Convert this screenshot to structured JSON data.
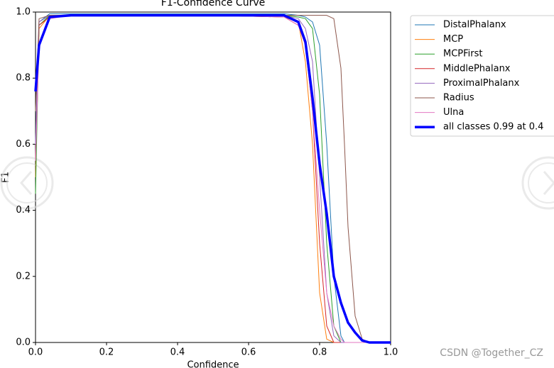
{
  "chart_data": {
    "type": "line",
    "title": "F1-Confidence Curve",
    "xlabel": "Confidence",
    "ylabel": "F1",
    "x": [
      0,
      0.01,
      0.04,
      0.1,
      0.5,
      0.7,
      0.74,
      0.76,
      0.78,
      0.8,
      0.82,
      0.84,
      0.86,
      0.87,
      0.88,
      0.9,
      0.92,
      0.94,
      1.0
    ],
    "series": [
      {
        "name": "DistalPhalanx",
        "color": "#1f77b4",
        "width": 1,
        "values": [
          0.6,
          0.97,
          0.995,
          0.995,
          0.995,
          0.995,
          0.99,
          0.985,
          0.97,
          0.9,
          0.6,
          0.2,
          0.02,
          0,
          0,
          0,
          0,
          0,
          0
        ]
      },
      {
        "name": "MCP",
        "color": "#ff7f0e",
        "width": 1,
        "values": [
          0.5,
          0.95,
          0.99,
          0.99,
          0.99,
          0.985,
          0.97,
          0.85,
          0.6,
          0.15,
          0.01,
          0,
          0,
          0,
          0,
          0,
          0,
          0,
          0
        ]
      },
      {
        "name": "MCPFirst",
        "color": "#2ca02c",
        "width": 1,
        "values": [
          0.45,
          0.96,
          0.99,
          0.99,
          0.99,
          0.99,
          0.985,
          0.98,
          0.95,
          0.75,
          0.3,
          0.05,
          0,
          0,
          0,
          0,
          0,
          0,
          0
        ]
      },
      {
        "name": "MiddlePhalanx",
        "color": "#d62728",
        "width": 1,
        "values": [
          0.55,
          0.96,
          0.985,
          0.99,
          0.99,
          0.985,
          0.96,
          0.9,
          0.7,
          0.3,
          0.05,
          0,
          0,
          0,
          0,
          0,
          0,
          0,
          0
        ]
      },
      {
        "name": "ProximalPhalanx",
        "color": "#9467bd",
        "width": 1,
        "values": [
          0.6,
          0.97,
          0.99,
          0.99,
          0.99,
          0.99,
          0.98,
          0.95,
          0.85,
          0.5,
          0.15,
          0.02,
          0,
          0,
          0,
          0,
          0,
          0,
          0
        ]
      },
      {
        "name": "Radius",
        "color": "#8c564b",
        "width": 1,
        "values": [
          0.7,
          0.98,
          0.99,
          0.99,
          0.99,
          0.99,
          0.99,
          0.99,
          0.99,
          0.99,
          0.99,
          0.98,
          0.83,
          0.6,
          0.35,
          0.08,
          0.01,
          0,
          0
        ]
      },
      {
        "name": "Ulna",
        "color": "#e377c2",
        "width": 1,
        "values": [
          0.55,
          0.9,
          0.98,
          0.99,
          0.99,
          0.985,
          0.96,
          0.9,
          0.7,
          0.4,
          0.15,
          0.05,
          0.01,
          0,
          0,
          0,
          0,
          0,
          0
        ]
      },
      {
        "name": "all classes 0.99 at 0.4",
        "color": "#0000ff",
        "width": 3.5,
        "values": [
          0.76,
          0.9,
          0.985,
          0.99,
          0.99,
          0.99,
          0.97,
          0.91,
          0.74,
          0.54,
          0.39,
          0.2,
          0.12,
          0.09,
          0.06,
          0.03,
          0.006,
          0,
          0
        ]
      }
    ],
    "xlim": [
      0,
      1
    ],
    "ylim": [
      0,
      1
    ],
    "xticks": [
      {
        "value": 0,
        "label": "0.0"
      },
      0.2,
      0.4,
      0.6,
      0.8,
      {
        "value": 1,
        "label": "1.0"
      }
    ],
    "yticks": [
      {
        "value": 0,
        "label": "0.0"
      },
      0.2,
      0.4,
      0.6,
      0.8,
      {
        "value": 1,
        "label": "1.0"
      }
    ],
    "legend": "outside-right",
    "watermark": "CSDN @Together_CZ"
  }
}
